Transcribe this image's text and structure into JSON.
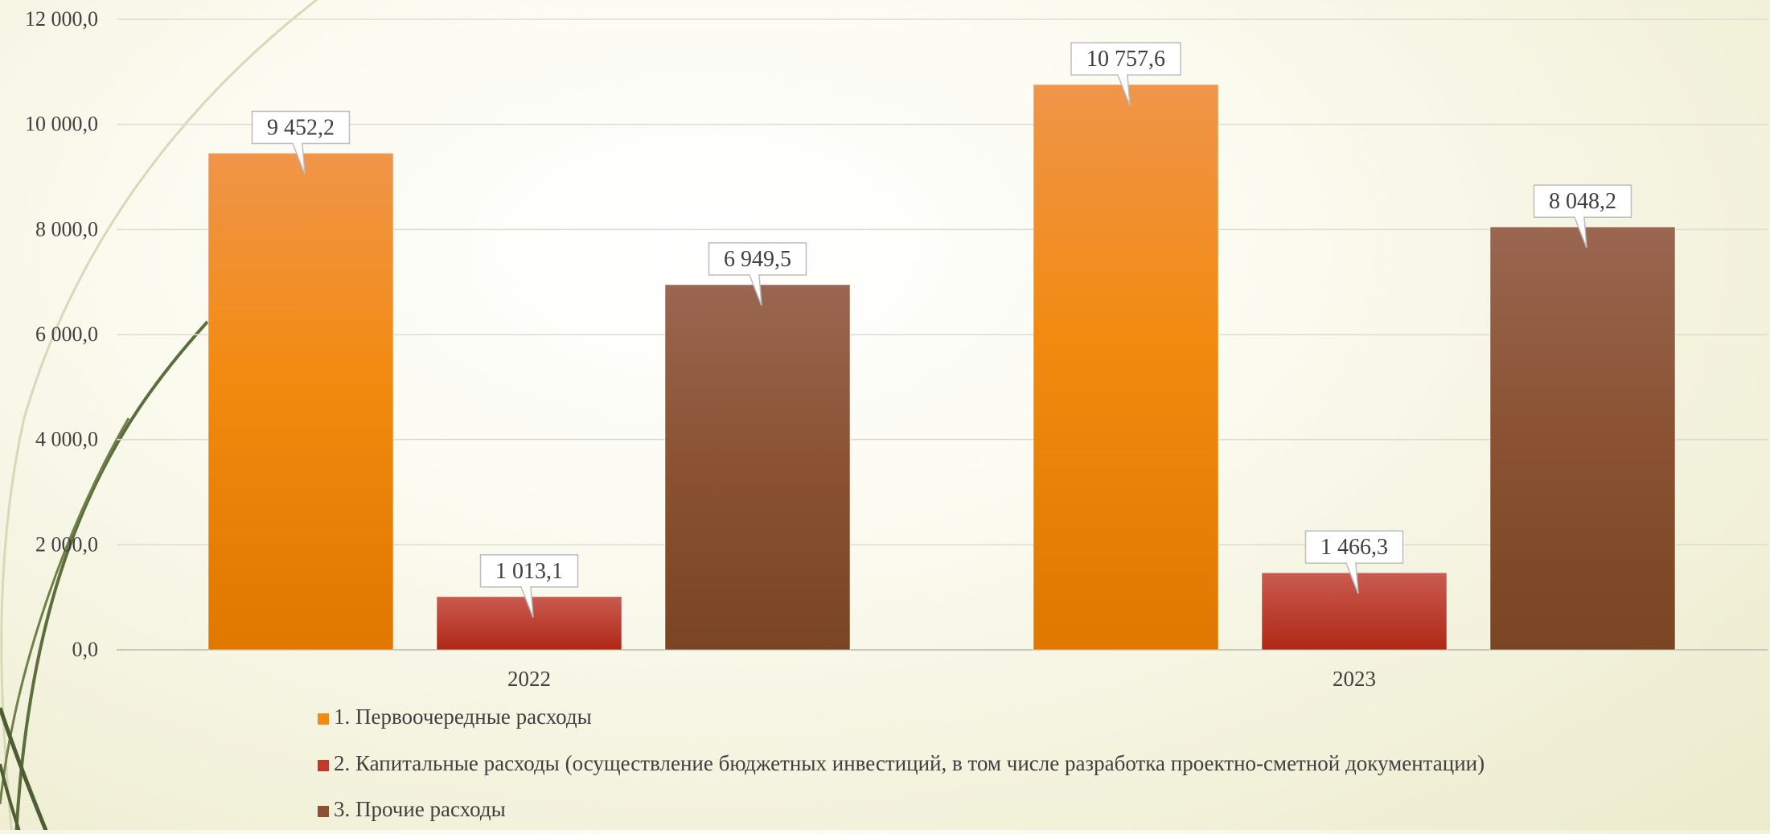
{
  "chart_data": {
    "type": "bar",
    "title": "",
    "xlabel": "",
    "ylabel": "",
    "categories": [
      "2022",
      "2023"
    ],
    "series": [
      {
        "name": "1. Первоочередные расходы",
        "values": [
          9452.2,
          10757.6
        ],
        "color": "#f08a14",
        "labels": [
          "9 452,2",
          "10 757,6"
        ]
      },
      {
        "name": "2. Капитальные расходы (осуществление бюджетных инвестиций, в том числе разработка проектно-сметной документации)",
        "values": [
          1013.1,
          1466.3
        ],
        "color": "#c0392b",
        "labels": [
          "1 013,1",
          "1 466,3"
        ]
      },
      {
        "name": "3. Прочие расходы",
        "values": [
          6949.5,
          8048.2
        ],
        "color": "#8a5230",
        "labels": [
          "6 949,5",
          "8 048,2"
        ]
      }
    ],
    "ylim": [
      0,
      12000
    ],
    "y_ticks": [
      0,
      2000,
      4000,
      6000,
      8000,
      10000,
      12000
    ],
    "y_tick_labels": [
      "0,0",
      "2 000,0",
      "4 000,0",
      "6 000,0",
      "8 000,0",
      "10 000,0",
      "12 000,0"
    ],
    "grid": true,
    "legend_position": "bottom",
    "data_labels": "callout"
  }
}
